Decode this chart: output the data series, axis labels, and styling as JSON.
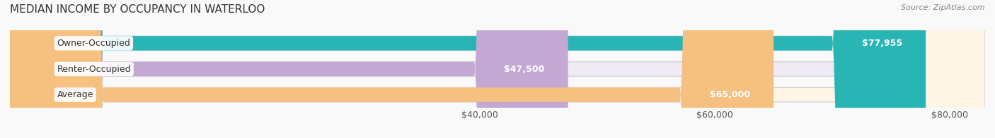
{
  "title": "MEDIAN INCOME BY OCCUPANCY IN WATERLOO",
  "source": "Source: ZipAtlas.com",
  "categories": [
    "Owner-Occupied",
    "Renter-Occupied",
    "Average"
  ],
  "values": [
    77955,
    47500,
    65000
  ],
  "labels": [
    "$77,955",
    "$47,500",
    "$65,000"
  ],
  "bar_colors": [
    "#2ab5b5",
    "#c4a8d4",
    "#f5c080"
  ],
  "bar_bg_colors": [
    "#e8f8f8",
    "#f0eaf5",
    "#fef5e7"
  ],
  "xlim": [
    0,
    83000
  ],
  "xticks": [
    40000,
    60000,
    80000
  ],
  "xticklabels": [
    "$40,000",
    "$60,000",
    "$80,000"
  ],
  "title_fontsize": 11,
  "label_fontsize": 9,
  "tick_fontsize": 9,
  "source_fontsize": 8,
  "bar_height": 0.55,
  "bg_color": "#f9f9f9"
}
